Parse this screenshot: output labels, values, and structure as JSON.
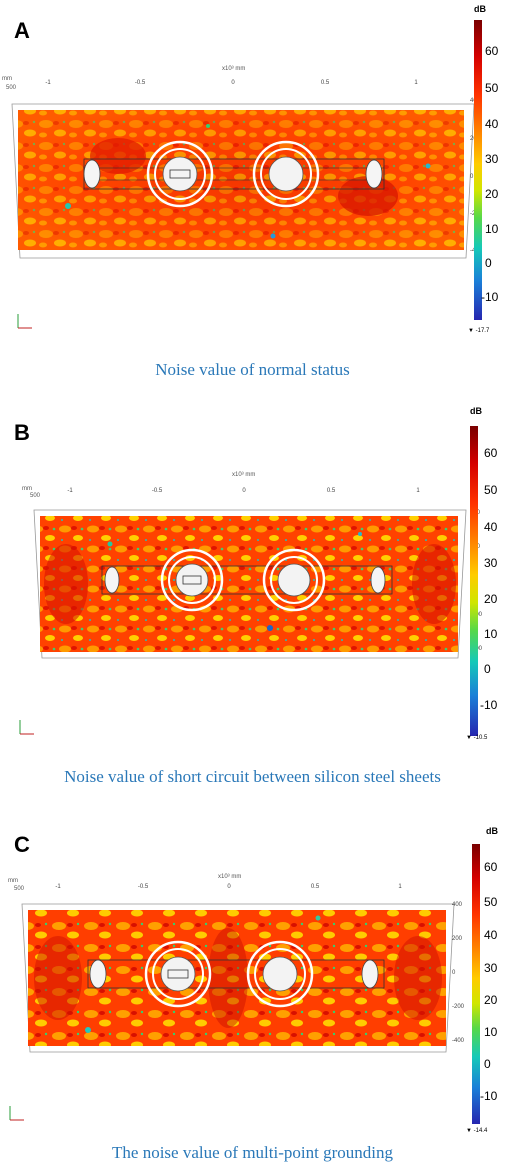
{
  "colorbar": {
    "unit": "dB",
    "ticks": [
      "60",
      "50",
      "40",
      "30",
      "20",
      "10",
      "0",
      "-10"
    ],
    "colors": [
      "#7a0000",
      "#d40000",
      "#ff3300",
      "#ff8800",
      "#ffcc00",
      "#cfe600",
      "#55d84a",
      "#15c9b8",
      "#1a7fd8",
      "#2626b0"
    ]
  },
  "panels": [
    {
      "letter": "A",
      "scale_label": "x10³ mm",
      "axis_unit": "mm",
      "z_label": "500",
      "x_ticks": [
        "-1",
        "-0.5",
        "0",
        "0.5",
        "1"
      ],
      "side_ticks": [
        "400",
        "200",
        "0",
        "-200",
        "-400"
      ],
      "colorbar_min": "▼ -17.7",
      "caption": "Noise value of normal status"
    },
    {
      "letter": "B",
      "scale_label": "x10³ mm",
      "axis_unit": "mm",
      "z_label": "500",
      "x_ticks": [
        "-1",
        "-0.5",
        "0",
        "0.5",
        "1"
      ],
      "side_ticks": [
        "400",
        "200",
        "0",
        "-200",
        "-400"
      ],
      "colorbar_min": "▼ -10.5",
      "caption": "Noise value of short circuit between silicon steel sheets"
    },
    {
      "letter": "C",
      "scale_label": "x10³ mm",
      "axis_unit": "mm",
      "z_label": "500",
      "x_ticks": [
        "-1",
        "-0.5",
        "0",
        "0.5",
        "1"
      ],
      "side_ticks": [
        "400",
        "200",
        "0",
        "-200",
        "-400"
      ],
      "colorbar_min": "▼ -14.4",
      "caption": "The noise value of multi-point grounding"
    }
  ]
}
